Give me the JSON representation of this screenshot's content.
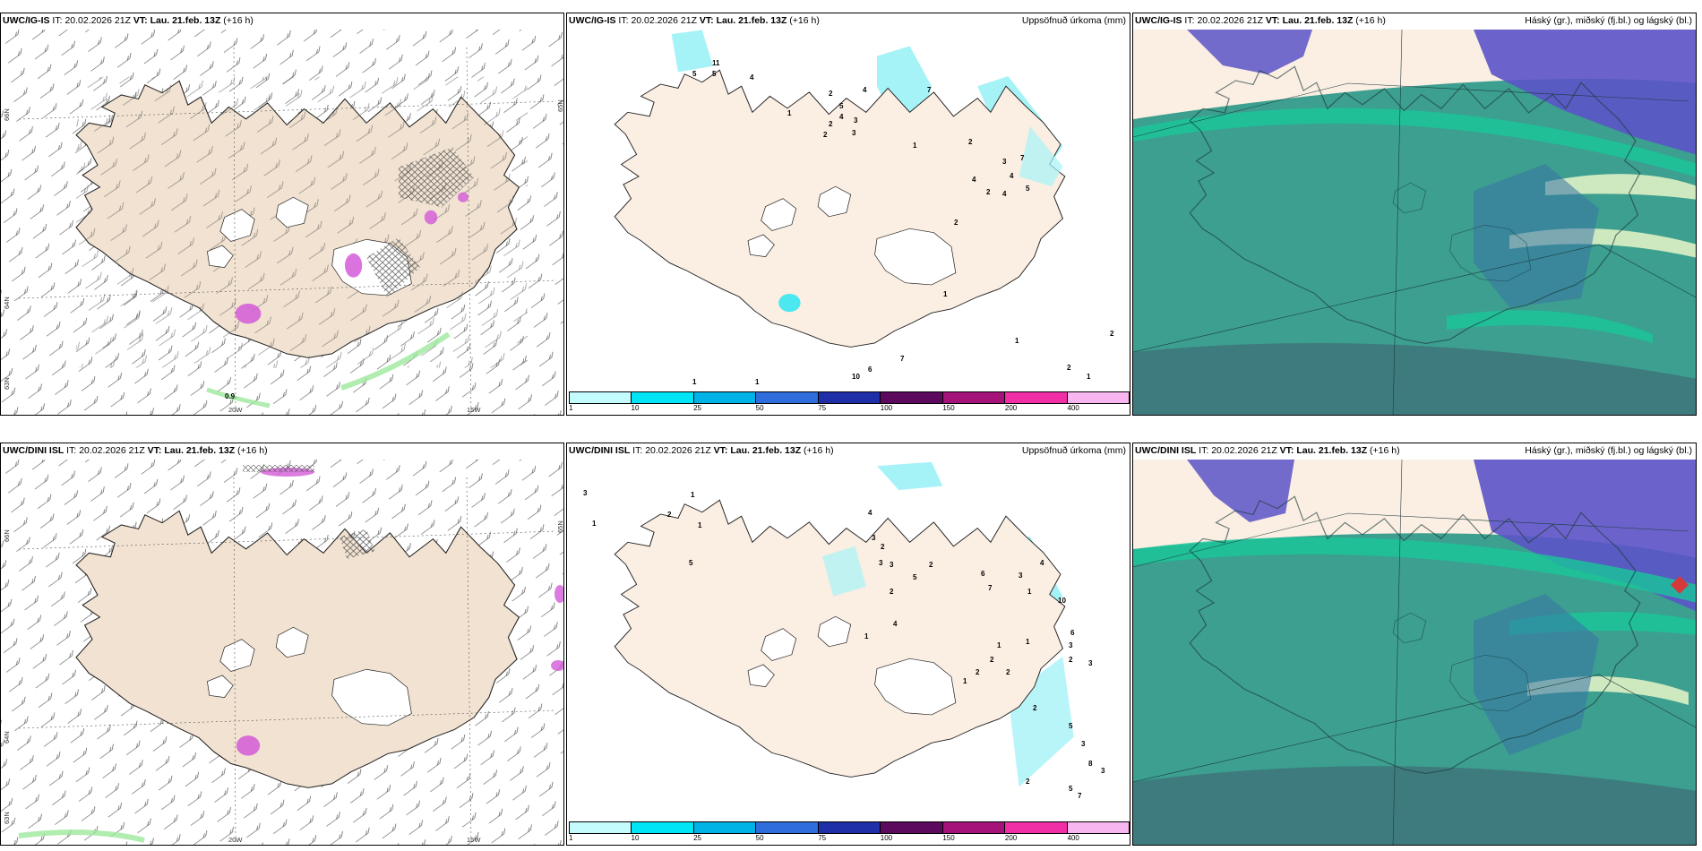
{
  "colors": {
    "land": "#f1e2d1",
    "land_alt": "#fbeee3",
    "precip_light": "#a6f3f7",
    "cloud_overlay": "#3c9f8f",
    "high_cloud": "#5b53c8",
    "mid_green": "#19c79a"
  },
  "top_row": [
    {
      "model": "UWC/IG-IS",
      "it_label": "IT:",
      "it_value": "20.02.2026 21Z",
      "vt_label": "VT:",
      "vt_value": "Lau. 21.feb. 13Z",
      "lead": "(+16 h)",
      "right_title": "",
      "lat_labels": [
        "66N",
        "64N",
        "65N",
        "63N"
      ],
      "lon_labels": [
        "20W",
        "15W"
      ],
      "contour_label": "0.9"
    },
    {
      "model": "UWC/IG-IS",
      "it_label": "IT:",
      "it_value": "20.02.2026 21Z",
      "vt_label": "VT:",
      "vt_value": "Lau. 21.feb. 13Z",
      "lead": "(+16 h)",
      "right_title": "Uppsöfnuð úrkoma (mm)",
      "precip_numbers": [
        "11",
        "5",
        "5",
        "4",
        "2",
        "5",
        "4",
        "3",
        "2",
        "4",
        "7",
        "1",
        "2",
        "3",
        "1",
        "2",
        "3",
        "4",
        "7",
        "5",
        "4",
        "4",
        "2",
        "2",
        "1",
        "7",
        "6",
        "10",
        "2",
        "2",
        "1",
        "1",
        "1",
        "1",
        "2"
      ]
    },
    {
      "model": "UWC/IG-IS",
      "it_label": "IT:",
      "it_value": "20.02.2026 21Z",
      "vt_label": "VT:",
      "vt_value": "Lau. 21.feb. 13Z",
      "lead": "(+16 h)",
      "right_title": "Háský (gr.), miðský (fj.bl.) og lágský (bl.)"
    }
  ],
  "bottom_row": [
    {
      "model": "UWC/DINI ISL",
      "it_label": "IT:",
      "it_value": "20.02.2026 21Z",
      "vt_label": "VT:",
      "vt_value": "Lau. 21.feb. 13Z",
      "lead": "(+16 h)",
      "right_title": "",
      "lat_labels": [
        "66N",
        "64N",
        "65N",
        "63N"
      ],
      "lon_labels": [
        "20W",
        "15W"
      ]
    },
    {
      "model": "UWC/DINI ISL",
      "it_label": "IT:",
      "it_value": "20.02.2026 21Z",
      "vt_label": "VT:",
      "vt_value": "Lau. 21.feb. 13Z",
      "lead": "(+16 h)",
      "right_title": "Uppsöfnuð úrkoma (mm)",
      "precip_numbers": [
        "3",
        "1",
        "1",
        "2",
        "1",
        "5",
        "4",
        "3",
        "2",
        "3",
        "5",
        "3",
        "2",
        "4",
        "1",
        "2",
        "6",
        "7",
        "3",
        "1",
        "4",
        "1",
        "1",
        "10",
        "6",
        "3",
        "2",
        "2",
        "1",
        "2",
        "3",
        "5",
        "3",
        "8",
        "2",
        "5",
        "7",
        "3",
        "2",
        "2"
      ]
    },
    {
      "model": "UWC/DINI ISL",
      "it_label": "IT:",
      "it_value": "20.02.2026 21Z",
      "vt_label": "VT:",
      "vt_value": "Lau. 21.feb. 13Z",
      "lead": "(+16 h)",
      "right_title": "Háský (gr.), miðský (fj.bl.) og lágský (bl.)"
    }
  ],
  "colorbar": {
    "ticks": [
      "1",
      "10",
      "25",
      "50",
      "75",
      "100",
      "150",
      "200",
      "400"
    ],
    "colors": [
      "#c4fbfd",
      "#00e5f5",
      "#00b3e6",
      "#2f6ddd",
      "#1f2fa7",
      "#5b0a5e",
      "#a5127a",
      "#f02fa6",
      "#f7b6ef"
    ]
  }
}
